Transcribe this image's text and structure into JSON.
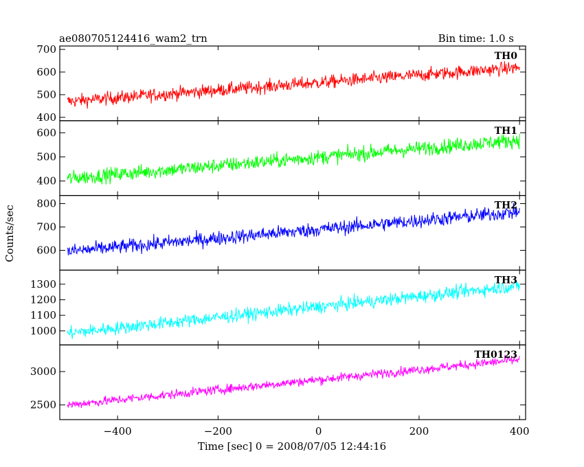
{
  "chart_data": {
    "type": "line",
    "title_left": "ae080705124416_wam2_trn",
    "title_right": "Bin time: 1.0 s",
    "xlabel": "Time [sec] 0 = 2008/07/05 12:44:16",
    "ylabel": "Counts/sec",
    "xlim": [
      -515,
      412
    ],
    "x_ticks": [
      -400,
      -200,
      0,
      200,
      400
    ],
    "x_tick_labels": [
      "−400",
      "−200",
      "0",
      "200",
      "400"
    ],
    "x_range": [
      -500,
      400
    ],
    "bin_time": 1.0,
    "grid": false,
    "panels": [
      {
        "name": "TH0",
        "color": "#ff0000",
        "ylim": [
          385,
          715
        ],
        "y_ticks": [
          400,
          500,
          600,
          700
        ],
        "trend_start": 470,
        "trend_end": 620,
        "noise_amplitude": 38
      },
      {
        "name": "TH1",
        "color": "#00ff00",
        "ylim": [
          340,
          650
        ],
        "y_ticks": [
          400,
          500,
          600
        ],
        "trend_start": 410,
        "trend_end": 570,
        "noise_amplitude": 40
      },
      {
        "name": "TH2",
        "color": "#0000ff",
        "ylim": [
          515,
          835
        ],
        "y_ticks": [
          600,
          700,
          800
        ],
        "trend_start": 595,
        "trend_end": 765,
        "noise_amplitude": 40
      },
      {
        "name": "TH3",
        "color": "#00ffff",
        "ylim": [
          910,
          1390
        ],
        "y_ticks": [
          1000,
          1100,
          1200,
          1300
        ],
        "trend_start": 985,
        "trend_end": 1290,
        "noise_amplitude": 55
      },
      {
        "name": "TH0123",
        "color": "#ff00ff",
        "ylim": [
          2280,
          3400
        ],
        "y_ticks": [
          2500,
          3000
        ],
        "trend_start": 2500,
        "trend_end": 3180,
        "noise_amplitude": 90
      }
    ]
  }
}
